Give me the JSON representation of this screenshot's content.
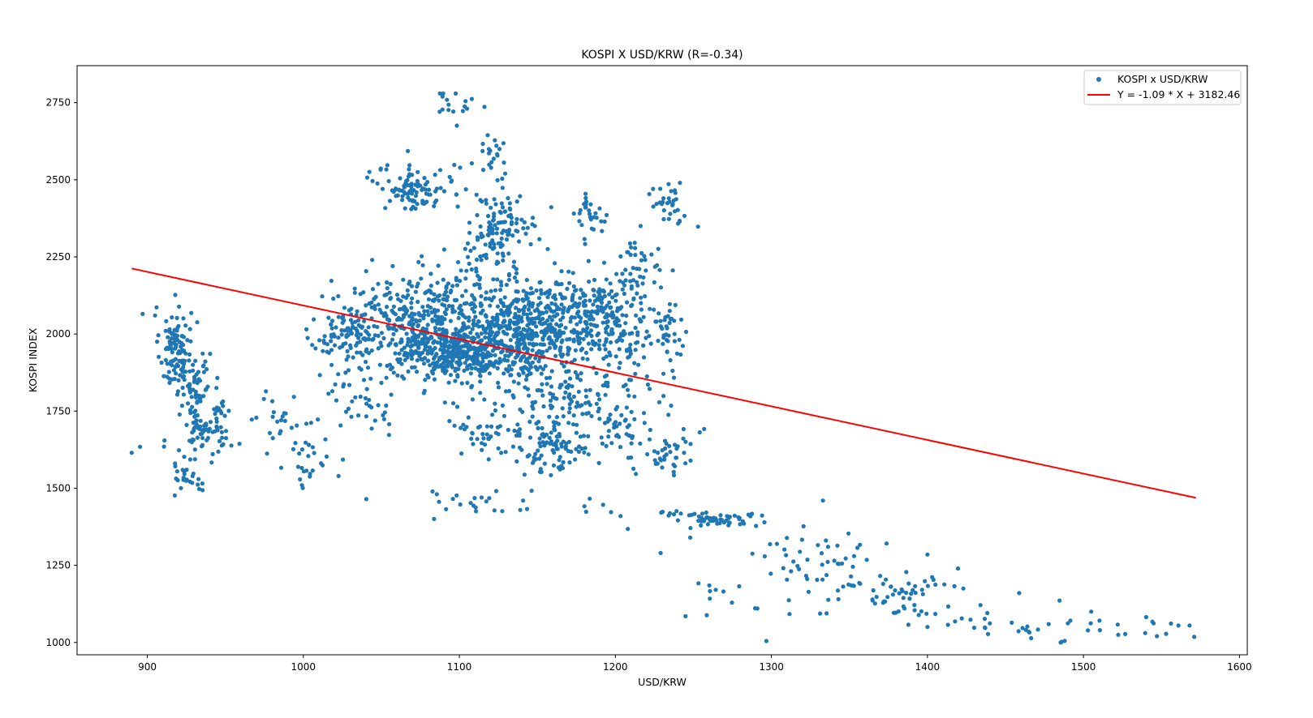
{
  "chart_data": {
    "type": "scatter",
    "title": "KOSPI X USD/KRW (R=-0.34)",
    "xlabel": "USD/KRW",
    "ylabel": "KOSPI INDEX",
    "xlim": [
      855,
      1605
    ],
    "ylim": [
      960,
      2870
    ],
    "xticks": [
      "900",
      "1000",
      "1100",
      "1200",
      "1300",
      "1400",
      "1500",
      "1600"
    ],
    "yticks": [
      "1000",
      "1250",
      "1500",
      "1750",
      "2000",
      "2250",
      "2500",
      "2750"
    ],
    "grid": false,
    "legend_position": "top-right",
    "legend": [
      "KOSPI x USD/KRW",
      "Y = -1.09 * X + 3182.46"
    ],
    "colors": {
      "scatter": "#1f77b4",
      "fit": "#ff0000"
    },
    "fit_line": {
      "slope": -1.09,
      "intercept": 3182.46,
      "x_range": [
        890,
        1572
      ]
    },
    "clusters": [
      {
        "cx": 918,
        "cy": 1950,
        "sx": 5,
        "sy": 70,
        "n": 110
      },
      {
        "cx": 932,
        "cy": 1780,
        "sx": 4,
        "sy": 100,
        "n": 90
      },
      {
        "cx": 945,
        "cy": 1690,
        "sx": 5,
        "sy": 50,
        "n": 40
      },
      {
        "cx": 925,
        "cy": 1545,
        "sx": 5,
        "sy": 30,
        "n": 25
      },
      {
        "cx": 1005,
        "cy": 1580,
        "sx": 8,
        "sy": 40,
        "n": 25
      },
      {
        "cx": 985,
        "cy": 1720,
        "sx": 15,
        "sy": 80,
        "n": 30
      },
      {
        "cx": 1025,
        "cy": 2010,
        "sx": 12,
        "sy": 40,
        "n": 60
      },
      {
        "cx": 1040,
        "cy": 1800,
        "sx": 12,
        "sy": 80,
        "n": 30
      },
      {
        "cx": 1068,
        "cy": 2470,
        "sx": 10,
        "sy": 35,
        "n": 80
      },
      {
        "cx": 1090,
        "cy": 2470,
        "sx": 8,
        "sy": 40,
        "n": 20
      },
      {
        "cx": 1095,
        "cy": 2740,
        "sx": 8,
        "sy": 30,
        "n": 15
      },
      {
        "cx": 1120,
        "cy": 2550,
        "sx": 8,
        "sy": 60,
        "n": 25
      },
      {
        "cx": 1130,
        "cy": 2370,
        "sx": 10,
        "sy": 40,
        "n": 70
      },
      {
        "cx": 1118,
        "cy": 2270,
        "sx": 8,
        "sy": 50,
        "n": 50
      },
      {
        "cx": 1080,
        "cy": 2020,
        "sx": 28,
        "sy": 90,
        "n": 520
      },
      {
        "cx": 1140,
        "cy": 2010,
        "sx": 25,
        "sy": 80,
        "n": 480
      },
      {
        "cx": 1100,
        "cy": 1930,
        "sx": 20,
        "sy": 40,
        "n": 220
      },
      {
        "cx": 1175,
        "cy": 2050,
        "sx": 18,
        "sy": 70,
        "n": 180
      },
      {
        "cx": 1205,
        "cy": 2000,
        "sx": 12,
        "sy": 90,
        "n": 100
      },
      {
        "cx": 1210,
        "cy": 2180,
        "sx": 12,
        "sy": 60,
        "n": 50
      },
      {
        "cx": 1235,
        "cy": 2000,
        "sx": 6,
        "sy": 70,
        "n": 40
      },
      {
        "cx": 1185,
        "cy": 2380,
        "sx": 5,
        "sy": 40,
        "n": 30
      },
      {
        "cx": 1160,
        "cy": 1630,
        "sx": 10,
        "sy": 40,
        "n": 80
      },
      {
        "cx": 1165,
        "cy": 1800,
        "sx": 20,
        "sy": 50,
        "n": 100
      },
      {
        "cx": 1125,
        "cy": 1690,
        "sx": 15,
        "sy": 40,
        "n": 50
      },
      {
        "cx": 1200,
        "cy": 1690,
        "sx": 15,
        "sy": 50,
        "n": 50
      },
      {
        "cx": 1235,
        "cy": 1610,
        "sx": 10,
        "sy": 40,
        "n": 40
      },
      {
        "cx": 1232,
        "cy": 2440,
        "sx": 5,
        "sy": 30,
        "n": 25
      },
      {
        "cx": 1240,
        "cy": 2370,
        "sx": 3,
        "sy": 15,
        "n": 6
      },
      {
        "cx": 1265,
        "cy": 1400,
        "sx": 12,
        "sy": 15,
        "n": 50
      },
      {
        "cx": 1240,
        "cy": 1420,
        "sx": 6,
        "sy": 5,
        "n": 10
      },
      {
        "cx": 1330,
        "cy": 1240,
        "sx": 20,
        "sy": 80,
        "n": 60
      },
      {
        "cx": 1385,
        "cy": 1160,
        "sx": 15,
        "sy": 40,
        "n": 50
      },
      {
        "cx": 1460,
        "cy": 1070,
        "sx": 20,
        "sy": 35,
        "n": 25
      },
      {
        "cx": 1530,
        "cy": 1050,
        "sx": 25,
        "sy": 20,
        "n": 12
      },
      {
        "cx": 1270,
        "cy": 1140,
        "sx": 15,
        "sy": 30,
        "n": 10
      },
      {
        "cx": 1110,
        "cy": 1450,
        "sx": 25,
        "sy": 30,
        "n": 25
      },
      {
        "cx": 1190,
        "cy": 1450,
        "sx": 15,
        "sy": 20,
        "n": 5
      },
      {
        "cx": 900,
        "cy": 1630,
        "sx": 10,
        "sy": 20,
        "n": 3
      }
    ],
    "points": [
      [
        890,
        1615
      ],
      [
        897,
        2065
      ],
      [
        905,
        2060
      ],
      [
        911,
        1655
      ],
      [
        1002,
        2015
      ],
      [
        1033,
        2147
      ],
      [
        1067,
        2593
      ],
      [
        1104,
        2755
      ],
      [
        1108,
        2762
      ],
      [
        1208,
        1368
      ],
      [
        1229,
        1290
      ],
      [
        1253,
        2348
      ],
      [
        1245,
        1085
      ],
      [
        1248,
        1340
      ],
      [
        1291,
        1110
      ],
      [
        1400,
        1285
      ],
      [
        1486,
        1002
      ],
      [
        1488,
        1005
      ],
      [
        1490,
        1062
      ],
      [
        1505,
        1100
      ],
      [
        1522,
        1058
      ],
      [
        1568,
        1055
      ],
      [
        1571,
        1018
      ],
      [
        1553,
        1028
      ],
      [
        1545,
        1062
      ],
      [
        1400,
        1050
      ],
      [
        1422,
        1078
      ],
      [
        1423,
        1175
      ]
    ]
  }
}
